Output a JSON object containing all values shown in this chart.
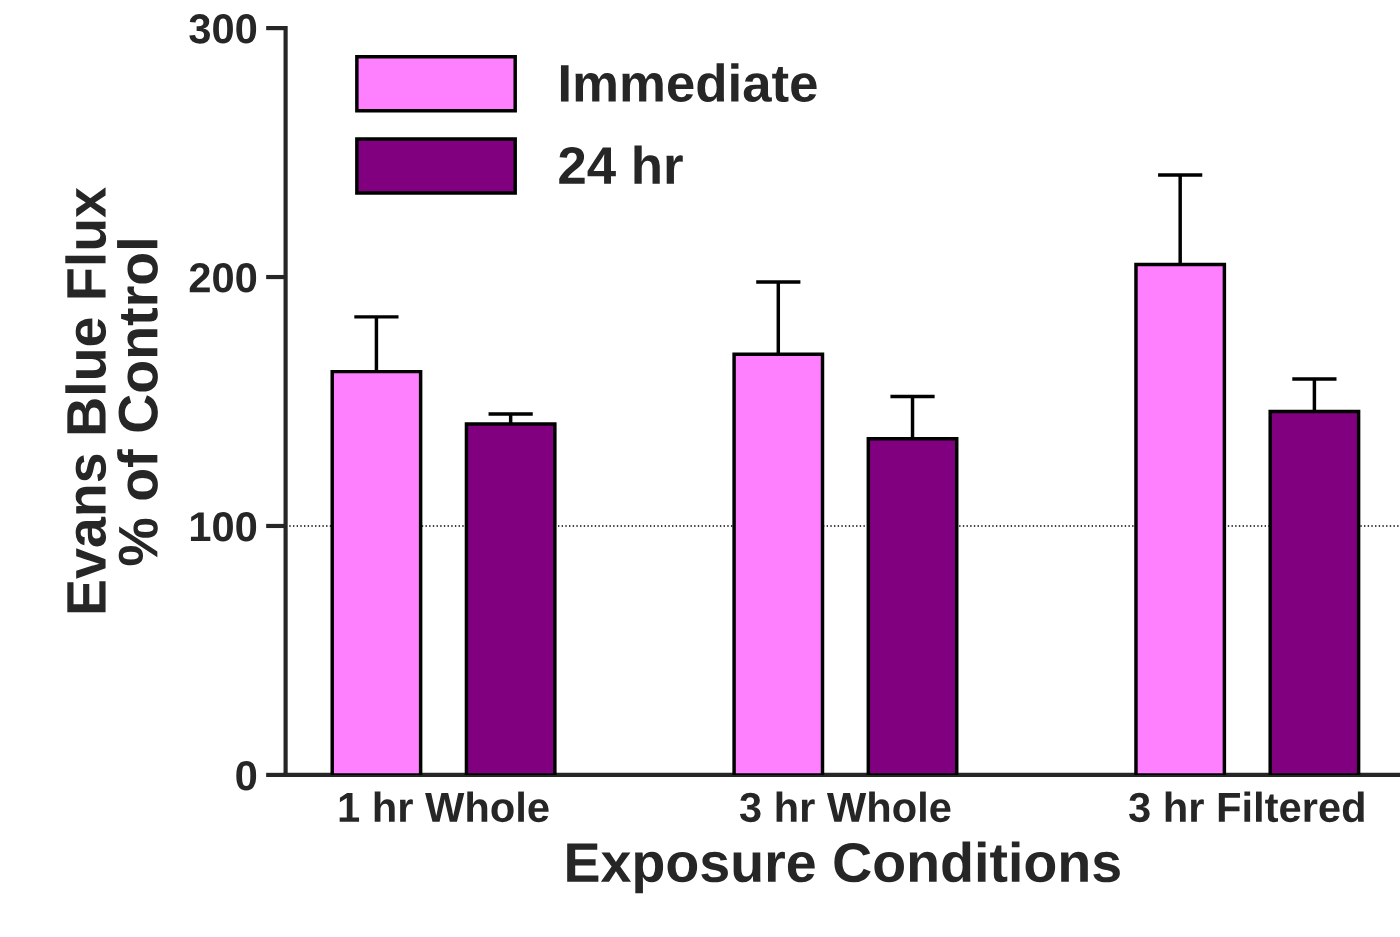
{
  "chart_data": {
    "type": "bar",
    "xlabel": "Exposure Conditions",
    "ylabel": "Evans Blue Flux\n% of Control",
    "categories": [
      "1 hr Whole",
      "3 hr Whole",
      "3 hr Filtered"
    ],
    "series": [
      {
        "name": "Immediate",
        "color": "#ff80ff",
        "values": [
          162,
          169,
          205
        ],
        "errors": [
          [
            162,
            184
          ],
          [
            169,
            198
          ],
          [
            205,
            241
          ]
        ]
      },
      {
        "name": "24 hr",
        "color": "#800080",
        "values": [
          141,
          135,
          146
        ],
        "errors": [
          [
            141,
            145
          ],
          [
            135,
            152
          ],
          [
            146,
            159
          ]
        ]
      }
    ],
    "ylim": [
      0,
      300
    ],
    "yticks": [
      0,
      100,
      200,
      300
    ],
    "ref_lines": [
      {
        "axis": "y",
        "value": 100,
        "color": "#000000",
        "line_style": "dotted"
      }
    ],
    "legend": "top left",
    "grid": false
  }
}
